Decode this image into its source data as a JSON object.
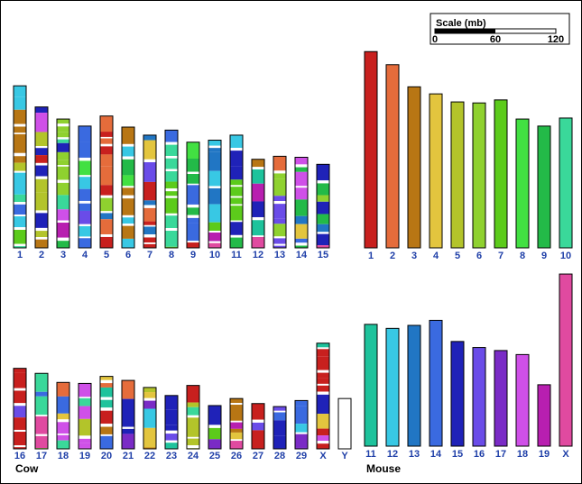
{
  "scale": {
    "title": "Scale (mb)",
    "ticks": [
      "0",
      "60",
      "120"
    ],
    "max_mb": 120,
    "shown_mb": 60
  },
  "species": {
    "cow": "Cow",
    "mouse": "Mouse"
  },
  "chart_data": {
    "type": "bar",
    "units": "mb",
    "mouse": [
      {
        "chr": "1",
        "length": 195,
        "color": "#c8201e"
      },
      {
        "chr": "2",
        "length": 182,
        "color": "#e56c3b"
      },
      {
        "chr": "3",
        "length": 160,
        "color": "#b87614"
      },
      {
        "chr": "4",
        "length": 153,
        "color": "#e3c53e"
      },
      {
        "chr": "5",
        "length": 145,
        "color": "#b3c42a"
      },
      {
        "chr": "6",
        "length": 144,
        "color": "#8fd12f"
      },
      {
        "chr": "7",
        "length": 147,
        "color": "#5ccb1b"
      },
      {
        "chr": "8",
        "length": 128,
        "color": "#42e042"
      },
      {
        "chr": "9",
        "length": 121,
        "color": "#23ba48"
      },
      {
        "chr": "10",
        "length": 129,
        "color": "#3ad89a"
      },
      {
        "chr": "11",
        "length": 121,
        "color": "#1ec39c"
      },
      {
        "chr": "12",
        "length": 117,
        "color": "#38c8e4"
      },
      {
        "chr": "13",
        "length": 120,
        "color": "#2176c4"
      },
      {
        "chr": "14",
        "length": 125,
        "color": "#3a6ae0"
      },
      {
        "chr": "15",
        "length": 104,
        "color": "#1f22b8"
      },
      {
        "chr": "16",
        "length": 98,
        "color": "#6a4ce8"
      },
      {
        "chr": "17",
        "length": 95,
        "color": "#7a2bc6"
      },
      {
        "chr": "18",
        "length": 91,
        "color": "#cf50e8"
      },
      {
        "chr": "19",
        "length": 61,
        "color": "#b81fb0"
      },
      {
        "chr": "X",
        "length": 171,
        "color": "#e04aa0"
      }
    ],
    "cow": [
      {
        "chr": "1",
        "length": 161
      },
      {
        "chr": "2",
        "length": 140
      },
      {
        "chr": "3",
        "length": 128
      },
      {
        "chr": "4",
        "length": 121
      },
      {
        "chr": "5",
        "length": 131
      },
      {
        "chr": "6",
        "length": 120
      },
      {
        "chr": "7",
        "length": 112
      },
      {
        "chr": "8",
        "length": 117
      },
      {
        "chr": "9",
        "length": 105
      },
      {
        "chr": "10",
        "length": 107
      },
      {
        "chr": "11",
        "length": 112
      },
      {
        "chr": "12",
        "length": 88
      },
      {
        "chr": "13",
        "length": 91
      },
      {
        "chr": "14",
        "length": 90
      },
      {
        "chr": "15",
        "length": 83
      },
      {
        "chr": "16",
        "length": 80
      },
      {
        "chr": "17",
        "length": 75
      },
      {
        "chr": "18",
        "length": 66
      },
      {
        "chr": "19",
        "length": 65
      },
      {
        "chr": "20",
        "length": 72
      },
      {
        "chr": "21",
        "length": 68
      },
      {
        "chr": "22",
        "length": 61
      },
      {
        "chr": "23",
        "length": 53
      },
      {
        "chr": "24",
        "length": 63
      },
      {
        "chr": "25",
        "length": 43
      },
      {
        "chr": "26",
        "length": 50
      },
      {
        "chr": "27",
        "length": 45
      },
      {
        "chr": "28",
        "length": 42
      },
      {
        "chr": "29",
        "length": 48
      },
      {
        "chr": "X",
        "length": 105
      },
      {
        "chr": "Y",
        "length": 50
      }
    ]
  }
}
